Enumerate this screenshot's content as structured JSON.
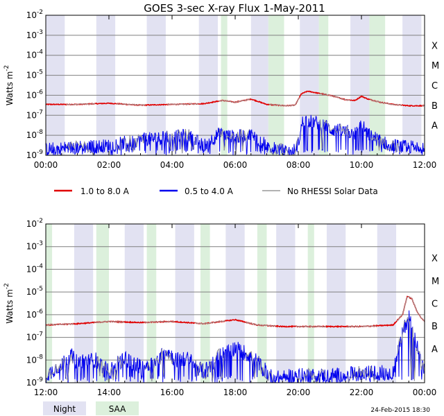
{
  "title": "GOES 3-sec X-ray Flux     1-May-2011",
  "ylabel": "Watts m",
  "ylabel_exp": "-2",
  "footer_date": "24-Feb-2015 18:30",
  "legend": {
    "long": {
      "label": "1.0 to 8.0 A",
      "color": "#e00000"
    },
    "short": {
      "label": "0.5 to 4.0 A",
      "color": "#0000ee"
    },
    "nodata": {
      "label": "No RHESSI Solar Data",
      "color": "#999999"
    },
    "night": {
      "label": "Night",
      "color": "#e2e2f2"
    },
    "saa": {
      "label": "SAA",
      "color": "#dcf0dc"
    }
  },
  "chart_data": [
    {
      "type": "line",
      "panel": "top",
      "x_ticks": [
        "00:00",
        "02:00",
        "04:00",
        "06:00",
        "08:00",
        "10:00",
        "12:00"
      ],
      "xlim_hours": [
        0,
        12
      ],
      "yscale": "log",
      "ylim": [
        1e-09,
        0.01
      ],
      "y_ticks": [
        {
          "base": "10",
          "exp": "-9"
        },
        {
          "base": "10",
          "exp": "-8"
        },
        {
          "base": "10",
          "exp": "-7"
        },
        {
          "base": "10",
          "exp": "-6"
        },
        {
          "base": "10",
          "exp": "-5"
        },
        {
          "base": "10",
          "exp": "-4"
        },
        {
          "base": "10",
          "exp": "-3"
        },
        {
          "base": "10",
          "exp": "-2"
        }
      ],
      "flare_classes": [
        "A",
        "B",
        "C",
        "M",
        "X"
      ],
      "night_intervals_hours": [
        [
          0.0,
          0.6
        ],
        [
          1.6,
          2.2
        ],
        [
          3.2,
          3.8
        ],
        [
          4.85,
          5.45
        ],
        [
          6.5,
          7.05
        ],
        [
          8.05,
          8.65
        ],
        [
          9.65,
          10.25
        ],
        [
          11.3,
          11.9
        ]
      ],
      "saa_intervals_hours": [
        [
          5.55,
          5.75
        ],
        [
          7.05,
          7.55
        ],
        [
          8.65,
          8.95
        ],
        [
          10.25,
          10.75
        ]
      ],
      "series": [
        {
          "name": "1.0 to 8.0 A",
          "x": [
            0.0,
            1.0,
            2.0,
            3.0,
            4.0,
            5.0,
            5.6,
            6.0,
            6.5,
            7.0,
            7.6,
            7.9,
            8.1,
            8.3,
            8.6,
            9.0,
            9.5,
            9.8,
            10.0,
            10.2,
            10.6,
            11.0,
            11.5,
            12.0
          ],
          "values": [
            3.5e-07,
            3.5e-07,
            4e-07,
            3.2e-07,
            3.5e-07,
            3.8e-07,
            5.5e-07,
            4.5e-07,
            6.5e-07,
            3.5e-07,
            3e-07,
            3.2e-07,
            1.2e-06,
            1.6e-06,
            1.3e-06,
            1e-06,
            6e-07,
            5.5e-07,
            9e-07,
            6.5e-07,
            4.5e-07,
            3.5e-07,
            3e-07,
            3e-07
          ]
        },
        {
          "name": "0.5 to 4.0 A",
          "x": [
            0.0,
            1.0,
            2.0,
            3.0,
            4.0,
            4.5,
            5.0,
            5.5,
            6.0,
            6.5,
            7.0,
            7.8,
            8.0,
            8.15,
            8.4,
            8.8,
            9.0,
            9.5,
            9.8,
            10.0,
            10.2,
            10.6,
            11.0,
            11.5,
            12.0
          ],
          "values": [
            2e-09,
            2.5e-09,
            3e-09,
            6e-09,
            8e-09,
            1e-08,
            3e-09,
            1.2e-08,
            8e-09,
            1.1e-08,
            3e-09,
            1.2e-09,
            4e-09,
            6e-08,
            5e-08,
            3.5e-08,
            2e-08,
            1.5e-08,
            1.2e-08,
            3.5e-08,
            1.2e-08,
            5e-09,
            3e-09,
            2.5e-09,
            3e-09
          ]
        }
      ]
    },
    {
      "type": "line",
      "panel": "bottom",
      "x_ticks": [
        "12:00",
        "14:00",
        "16:00",
        "18:00",
        "20:00",
        "22:00",
        "00:00"
      ],
      "xlim_hours": [
        12,
        24
      ],
      "yscale": "log",
      "ylim": [
        1e-09,
        0.01
      ],
      "y_ticks": [
        {
          "base": "10",
          "exp": "-9"
        },
        {
          "base": "10",
          "exp": "-8"
        },
        {
          "base": "10",
          "exp": "-7"
        },
        {
          "base": "10",
          "exp": "-6"
        },
        {
          "base": "10",
          "exp": "-5"
        },
        {
          "base": "10",
          "exp": "-4"
        },
        {
          "base": "10",
          "exp": "-3"
        },
        {
          "base": "10",
          "exp": "-2"
        }
      ],
      "flare_classes": [
        "A",
        "B",
        "C",
        "M",
        "X"
      ],
      "night_intervals_hours": [
        [
          12.9,
          13.5
        ],
        [
          14.5,
          15.1
        ],
        [
          16.1,
          16.7
        ],
        [
          17.7,
          18.3
        ],
        [
          19.3,
          19.9
        ],
        [
          20.9,
          21.5
        ],
        [
          22.5,
          23.1
        ]
      ],
      "saa_intervals_hours": [
        [
          12.0,
          12.2
        ],
        [
          13.6,
          14.0
        ],
        [
          15.2,
          15.5
        ],
        [
          16.9,
          17.2
        ],
        [
          18.7,
          19.0
        ],
        [
          20.3,
          20.5
        ]
      ],
      "series": [
        {
          "name": "1.0 to 8.0 A",
          "x": [
            12.0,
            13.0,
            14.0,
            15.0,
            16.0,
            17.0,
            18.0,
            18.7,
            19.5,
            20.0,
            21.0,
            22.0,
            23.0,
            23.3,
            23.45,
            23.6,
            23.75,
            23.9,
            24.0
          ],
          "values": [
            3.5e-07,
            4e-07,
            5e-07,
            4.5e-07,
            5e-07,
            4e-07,
            6e-07,
            3.5e-07,
            3e-07,
            3e-07,
            3e-07,
            3e-07,
            3.5e-07,
            1e-06,
            6.5e-06,
            5e-06,
            1.5e-06,
            7e-07,
            5e-07
          ]
        },
        {
          "name": "0.5 to 4.0 A",
          "x": [
            12.0,
            12.8,
            13.0,
            13.6,
            14.0,
            14.5,
            15.0,
            15.5,
            15.8,
            16.1,
            16.5,
            17.0,
            17.5,
            18.0,
            18.5,
            18.8,
            19.2,
            20.0,
            21.0,
            22.0,
            23.0,
            23.3,
            23.5,
            23.7,
            23.9,
            24.0
          ],
          "values": [
            2e-09,
            1.5e-08,
            8e-09,
            1e-08,
            3e-09,
            1.2e-08,
            5e-09,
            8e-09,
            3e-08,
            1e-08,
            1.1e-08,
            3e-09,
            1.5e-08,
            3.5e-08,
            1.5e-08,
            6e-09,
            1.5e-09,
            2e-09,
            2e-09,
            2.5e-09,
            3e-09,
            1.5e-07,
            9e-07,
            1e-07,
            6e-09,
            3e-09
          ]
        }
      ]
    }
  ]
}
